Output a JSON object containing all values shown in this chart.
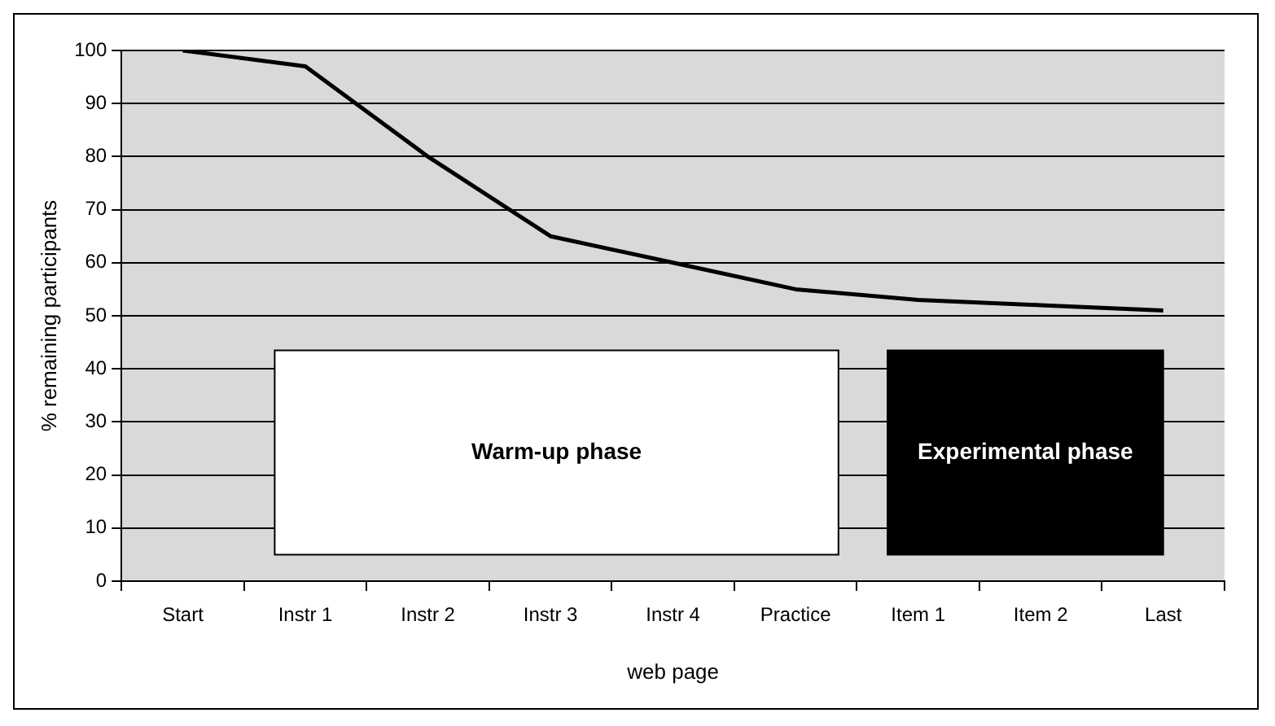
{
  "chart_data": {
    "type": "line",
    "xlabel": "web page",
    "ylabel": "% remaining participants",
    "categories": [
      "Start",
      "Instr 1",
      "Instr 2",
      "Instr 3",
      "Instr 4",
      "Practice",
      "Item 1",
      "Item 2",
      "Last"
    ],
    "series": [
      {
        "color": "#000000",
        "values": [
          100,
          97,
          80,
          65,
          60,
          55,
          53,
          52,
          51
        ]
      }
    ],
    "ylim": [
      0,
      100
    ],
    "yticks": [
      0,
      10,
      20,
      30,
      40,
      50,
      60,
      70,
      80,
      90,
      100
    ],
    "grid": "y",
    "legend": false,
    "marker": "none",
    "line_style": "solid",
    "bands": [
      {
        "axis": "x",
        "from": "Instr 1",
        "to": "Practice",
        "label": "Warm-up phase",
        "color": "#ffffff"
      },
      {
        "axis": "x",
        "from": "Item 1",
        "to": "Last",
        "label": "Experimental phase",
        "color": "#000000"
      }
    ]
  }
}
